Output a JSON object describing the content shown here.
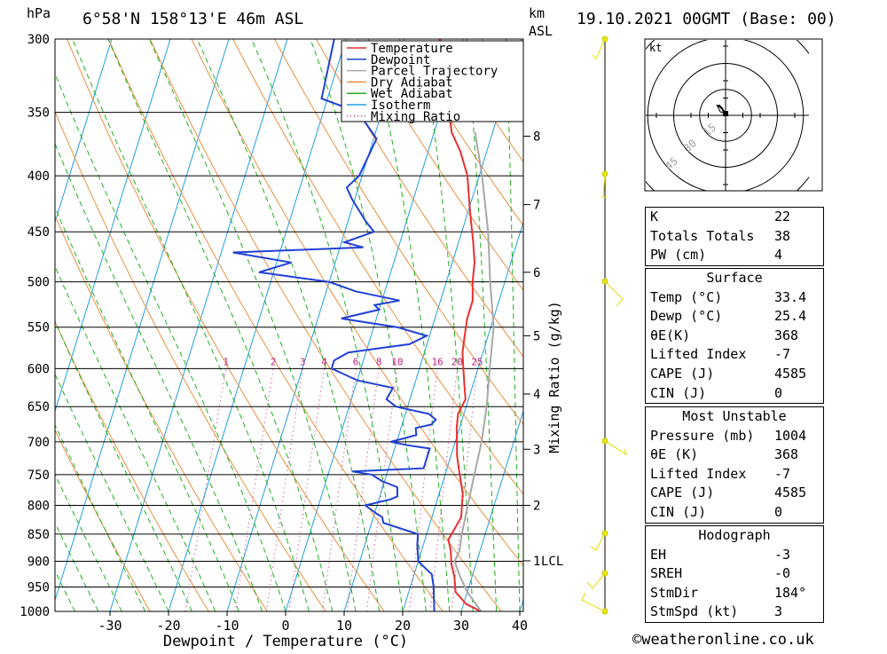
{
  "header": {
    "hpa_label": "hPa",
    "location": "6°58'N  158°13'E  46m  ASL",
    "km_label": "km",
    "asl_label": "ASL",
    "datetime": "19.10.2021  00GMT  (Base: 00)"
  },
  "footer": {
    "copyright": "©weatheronline.co.uk"
  },
  "hodograph": {
    "unit_label": "kt",
    "ring_labels": [
      "15",
      "30",
      "45"
    ],
    "hodo_points": [
      [
        0,
        0
      ],
      [
        -1,
        2
      ],
      [
        -2,
        3
      ]
    ]
  },
  "indices_table": {
    "rows": [
      {
        "label": "K",
        "value": "22"
      },
      {
        "label": "Totals Totals",
        "value": "38"
      },
      {
        "label": "PW (cm)",
        "value": "4"
      }
    ]
  },
  "surface_table": {
    "title": "Surface",
    "rows": [
      {
        "label": "Temp (°C)",
        "value": "33.4"
      },
      {
        "label": "Dewp (°C)",
        "value": "25.4"
      },
      {
        "label": "θE(K)",
        "value": "368"
      },
      {
        "label": "Lifted Index",
        "value": "-7"
      },
      {
        "label": "CAPE (J)",
        "value": "4585"
      },
      {
        "label": "CIN (J)",
        "value": "0"
      }
    ]
  },
  "unstable_table": {
    "title": "Most Unstable",
    "rows": [
      {
        "label": "Pressure (mb)",
        "value": "1004"
      },
      {
        "label": "θE (K)",
        "value": "368"
      },
      {
        "label": "Lifted Index",
        "value": "-7"
      },
      {
        "label": "CAPE (J)",
        "value": "4585"
      },
      {
        "label": "CIN (J)",
        "value": "0"
      }
    ]
  },
  "hodograph_table": {
    "title": "Hodograph",
    "rows": [
      {
        "label": "EH",
        "value": "-3"
      },
      {
        "label": "SREH",
        "value": "-0"
      },
      {
        "label": "StmDir",
        "value": "184°"
      },
      {
        "label": "StmSpd (kt)",
        "value": "3"
      }
    ]
  },
  "colors": {
    "temperature": "#e83030",
    "dewpoint": "#2040d8",
    "parcel": "#a8a8a8",
    "dry_adiabat": "#e89040",
    "wet_adiabat": "#20b020",
    "isotherm": "#20a0e0",
    "mixing_ratio": "#c02080"
  },
  "chart_data": {
    "type": "line",
    "xlabel": "Dewpoint / Temperature (°C)",
    "ylabel": "Mixing Ratio (g/kg)",
    "x_ticks": [
      -30,
      -20,
      -10,
      0,
      10,
      20,
      30,
      40
    ],
    "pressure_ticks": [
      300,
      350,
      400,
      450,
      500,
      550,
      600,
      650,
      700,
      750,
      800,
      850,
      900,
      950,
      1000
    ],
    "height_km_ticks": [
      {
        "label": "8",
        "p": 368
      },
      {
        "label": "7",
        "p": 425
      },
      {
        "label": "6",
        "p": 490
      },
      {
        "label": "5",
        "p": 560
      },
      {
        "label": "4",
        "p": 633
      },
      {
        "label": "3",
        "p": 711
      },
      {
        "label": "2",
        "p": 800
      },
      {
        "label": "1",
        "p": 899
      }
    ],
    "lcl_label": "LCL",
    "lcl_p": 899,
    "mixing_ratio_labels": [
      "1",
      "2",
      "3",
      "4",
      "6",
      "8",
      "10",
      "16",
      "20",
      "25"
    ],
    "legend": {
      "entries": [
        "Temperature",
        "Dewpoint",
        "Parcel Trajectory",
        "Dry Adiabat",
        "Wet Adiabat",
        "Isotherm",
        "Mixing Ratio"
      ],
      "placement": "top-center"
    },
    "series": [
      {
        "name": "Temperature",
        "points": [
          [
            1000,
            33.4
          ],
          [
            985,
            30.5
          ],
          [
            960,
            28.0
          ],
          [
            930,
            27.0
          ],
          [
            905,
            25.8
          ],
          [
            880,
            25.0
          ],
          [
            860,
            24.0
          ],
          [
            840,
            24.5
          ],
          [
            820,
            25.0
          ],
          [
            800,
            24.5
          ],
          [
            780,
            24.0
          ],
          [
            760,
            23.0
          ],
          [
            740,
            22.0
          ],
          [
            720,
            21.0
          ],
          [
            700,
            20.3
          ],
          [
            680,
            19.5
          ],
          [
            660,
            19.0
          ],
          [
            640,
            19.5
          ],
          [
            620,
            18.5
          ],
          [
            600,
            17.5
          ],
          [
            580,
            16.5
          ],
          [
            560,
            16.0
          ],
          [
            540,
            15.5
          ],
          [
            520,
            15.5
          ],
          [
            500,
            14.5
          ],
          [
            480,
            13.8
          ],
          [
            460,
            12.5
          ],
          [
            440,
            11.0
          ],
          [
            420,
            9.5
          ],
          [
            400,
            8.0
          ],
          [
            380,
            5.5
          ],
          [
            365,
            3.0
          ],
          [
            300,
            -4.0
          ]
        ]
      },
      {
        "name": "Dewpoint",
        "points": [
          [
            1000,
            25.4
          ],
          [
            950,
            24.0
          ],
          [
            925,
            23.0
          ],
          [
            900,
            20.0
          ],
          [
            870,
            19.0
          ],
          [
            850,
            18.5
          ],
          [
            830,
            12.0
          ],
          [
            820,
            11.5
          ],
          [
            815,
            10.5
          ],
          [
            800,
            8.0
          ],
          [
            790,
            12.0
          ],
          [
            785,
            13.0
          ],
          [
            770,
            12.5
          ],
          [
            760,
            9.5
          ],
          [
            750,
            7.5
          ],
          [
            745,
            4.0
          ],
          [
            740,
            16.0
          ],
          [
            710,
            16.0
          ],
          [
            705,
            12.0
          ],
          [
            700,
            9.0
          ],
          [
            690,
            13.0
          ],
          [
            680,
            12.5
          ],
          [
            675,
            15.0
          ],
          [
            668,
            15.5
          ],
          [
            660,
            14.0
          ],
          [
            650,
            8.0
          ],
          [
            640,
            6.0
          ],
          [
            625,
            6.5
          ],
          [
            615,
            0.0
          ],
          [
            600,
            -5.0
          ],
          [
            590,
            -5.0
          ],
          [
            580,
            -3.0
          ],
          [
            575,
            2.0
          ],
          [
            570,
            7.0
          ],
          [
            560,
            9.5
          ],
          [
            550,
            4.0
          ],
          [
            540,
            -6.0
          ],
          [
            530,
            0.0
          ],
          [
            525,
            -1.0
          ],
          [
            520,
            3.0
          ],
          [
            510,
            -5.0
          ],
          [
            500,
            -10.0
          ],
          [
            490,
            -22.5
          ],
          [
            480,
            -17.5
          ],
          [
            470,
            -28.0
          ],
          [
            465,
            -6.0
          ],
          [
            460,
            -9.5
          ],
          [
            450,
            -5.0
          ],
          [
            440,
            -7.0
          ],
          [
            420,
            -10.5
          ],
          [
            410,
            -12.0
          ],
          [
            400,
            -10.5
          ],
          [
            370,
            -9.5
          ],
          [
            350,
            -14.0
          ],
          [
            340,
            -21.0
          ],
          [
            300,
            -22.0
          ]
        ]
      },
      {
        "name": "Parcel Trajectory",
        "points": [
          [
            1000,
            33.4
          ],
          [
            960,
            30.0
          ],
          [
            930,
            28.0
          ],
          [
            900,
            26.2
          ],
          [
            880,
            26.5
          ],
          [
            850,
            26.0
          ],
          [
            800,
            25.5
          ],
          [
            750,
            25.0
          ],
          [
            700,
            24.5
          ],
          [
            650,
            23.5
          ],
          [
            600,
            22.0
          ],
          [
            550,
            20.5
          ],
          [
            500,
            17.5
          ],
          [
            450,
            14.5
          ],
          [
            400,
            10.5
          ],
          [
            365,
            7.0
          ]
        ]
      }
    ]
  }
}
